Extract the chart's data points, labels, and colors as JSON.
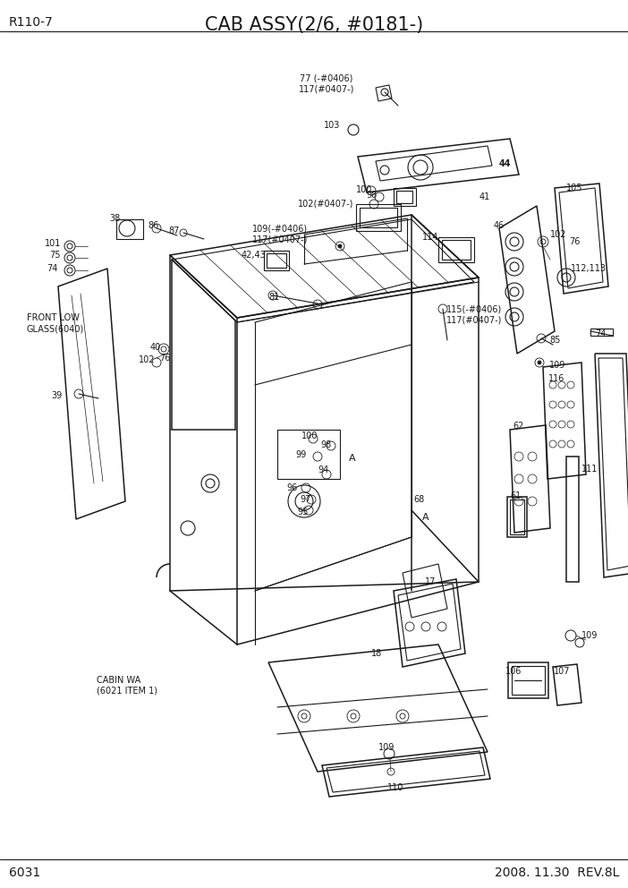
{
  "title": "CAB ASSY(2/6, #0181-)",
  "model": "R110-7",
  "page": "6031",
  "date": "2008. 11.30  REV.8L",
  "bg_color": "#ffffff",
  "line_color": "#1a1a1a",
  "text_color": "#1a1a1a",
  "fig_w": 7.02,
  "fig_h": 9.92,
  "dpi": 100,
  "title_fontsize": 15,
  "label_fontsize": 7,
  "header_fontsize": 10,
  "footer_fontsize": 10,
  "lw_main": 1.1,
  "lw_thin": 0.6,
  "lw_med": 0.8
}
